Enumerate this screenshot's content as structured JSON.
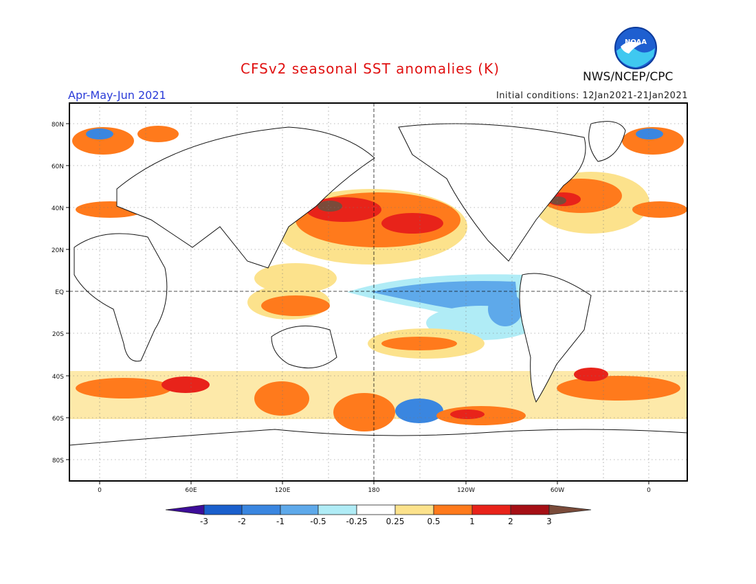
{
  "header": {
    "title": "CFSv2 seasonal SST anomalies (K)",
    "period": "Apr-May-Jun 2021",
    "initial_conditions": "Initial conditions: 12Jan2021-21Jan2021",
    "agency": "NWS/NCEP/CPC",
    "logo_text": "NOAA"
  },
  "axes": {
    "lat_labels": [
      "80N",
      "60N",
      "40N",
      "20N",
      "EQ",
      "20S",
      "40S",
      "60S",
      "80S"
    ],
    "lon_labels": [
      "0",
      "60E",
      "120E",
      "180",
      "120W",
      "60W",
      "0"
    ]
  },
  "colorbar": {
    "ticks": [
      "-3",
      "-2",
      "-1",
      "-0.5",
      "-0.25",
      "0.25",
      "0.5",
      "1",
      "2",
      "3"
    ],
    "colors": [
      "#3d0d99",
      "#1a5fcc",
      "#3a86e0",
      "#5ea9ea",
      "#b0ecf6",
      "#ffffff",
      "#fce28c",
      "#ff7a1c",
      "#e8231a",
      "#a50f15",
      "#7a4b3a"
    ]
  }
}
